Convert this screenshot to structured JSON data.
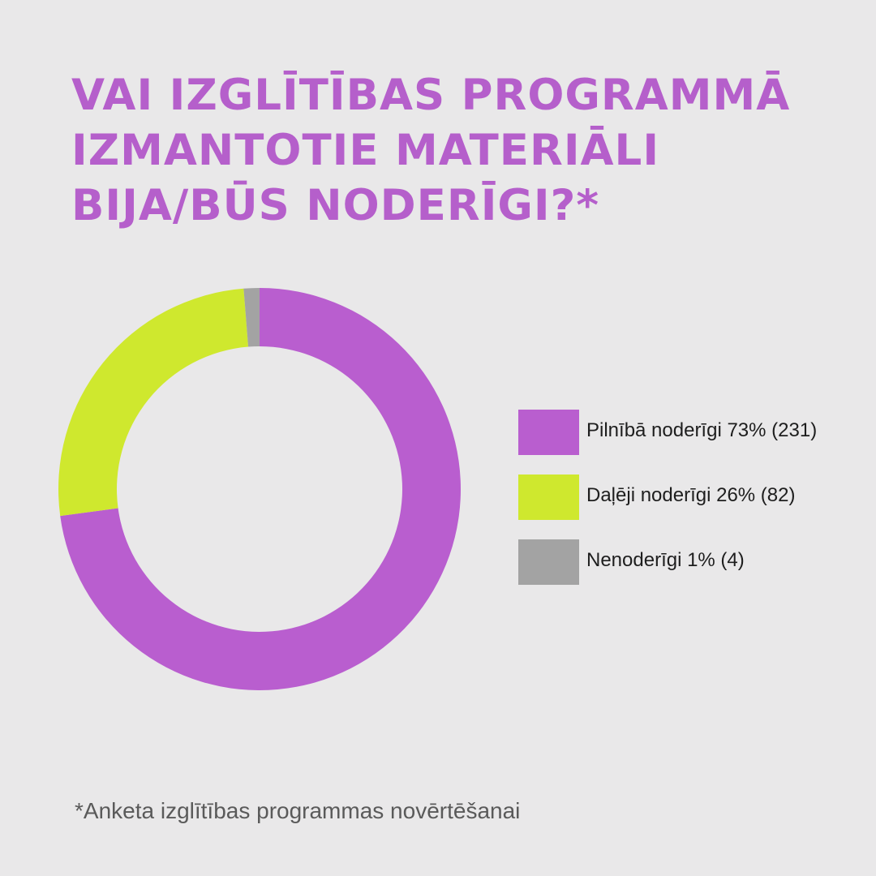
{
  "title_lines": [
    "VAI IZGLĪTĪBAS PROGRAMMĀ",
    "IZMANTOTIE MATERIĀLI",
    "BIJA/BŪS NODERĪGI?*"
  ],
  "colors": {
    "title": "#b55fcb",
    "background": "#e9e8e9"
  },
  "chart_data": {
    "type": "pie",
    "style": "donut",
    "title": "VAI IZGLĪTĪBAS PROGRAMMĀ IZMANTOTIE MATERIĀLI BIJA/BŪS NODERĪGI?*",
    "legend_position": "right",
    "slices": [
      {
        "label": "Pilnībā noderīgi 73% (231)",
        "name": "Pilnībā noderīgi",
        "percent": 73,
        "count": 231,
        "color": "#b95ecf"
      },
      {
        "label": "Daļēji noderīgi 26% (82)",
        "name": "Daļēji noderīgi",
        "percent": 26,
        "count": 82,
        "color": "#cfe82e"
      },
      {
        "label": "Nenoderīgi 1% (4)",
        "name": "Nenoderīgi",
        "percent": 1,
        "count": 4,
        "color": "#a3a3a3"
      }
    ]
  },
  "footnote": "*Anketa izglītības programmas novērtēšanai"
}
